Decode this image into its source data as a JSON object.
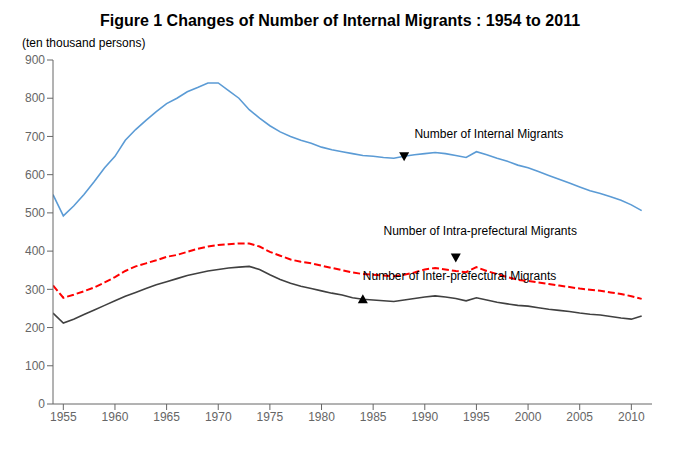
{
  "chart_data": {
    "type": "line",
    "title": "Figure 1   Changes of Number of Internal Migrants : 1954 to 2011",
    "ylabel": "(ten thousand persons)",
    "grid": false,
    "xlim": [
      1954,
      2012
    ],
    "xticks": [
      1955,
      1960,
      1965,
      1970,
      1975,
      1980,
      1985,
      1990,
      1995,
      2000,
      2005,
      2010
    ],
    "ylim": [
      0,
      900
    ],
    "yticks": [
      0,
      100,
      200,
      300,
      400,
      500,
      600,
      700,
      800,
      900
    ],
    "x": [
      1954,
      1955,
      1956,
      1957,
      1958,
      1959,
      1960,
      1961,
      1962,
      1963,
      1964,
      1965,
      1966,
      1967,
      1968,
      1969,
      1970,
      1971,
      1972,
      1973,
      1974,
      1975,
      1976,
      1977,
      1978,
      1979,
      1980,
      1981,
      1982,
      1983,
      1984,
      1985,
      1986,
      1987,
      1988,
      1989,
      1990,
      1991,
      1992,
      1993,
      1994,
      1995,
      1996,
      1997,
      1998,
      1999,
      2000,
      2001,
      2002,
      2003,
      2004,
      2005,
      2006,
      2007,
      2008,
      2009,
      2010,
      2011
    ],
    "series": [
      {
        "color": "#5B9BD5",
        "line_style": "solid",
        "values": [
          548,
          492,
          518,
          548,
          582,
          618,
          648,
          690,
          718,
          742,
          765,
          786,
          800,
          817,
          828,
          840,
          840,
          820,
          800,
          770,
          748,
          728,
          712,
          700,
          690,
          682,
          672,
          665,
          660,
          655,
          650,
          648,
          645,
          643,
          648,
          652,
          655,
          658,
          655,
          650,
          645,
          660,
          652,
          643,
          635,
          625,
          618,
          608,
          598,
          588,
          578,
          568,
          558,
          551,
          542,
          533,
          521,
          506
        ]
      },
      {
        "color": "#FF0000",
        "line_style": "dashed",
        "values": [
          310,
          278,
          286,
          295,
          305,
          318,
          332,
          348,
          360,
          368,
          376,
          385,
          390,
          398,
          406,
          412,
          416,
          418,
          420,
          420,
          412,
          398,
          388,
          378,
          372,
          368,
          362,
          356,
          350,
          344,
          340,
          338,
          336,
          334,
          338,
          344,
          352,
          356,
          352,
          348,
          345,
          358,
          348,
          340,
          332,
          325,
          322,
          318,
          314,
          310,
          306,
          302,
          299,
          296,
          292,
          288,
          282,
          275
        ]
      },
      {
        "color": "#404040",
        "line_style": "solid",
        "values": [
          238,
          212,
          222,
          234,
          246,
          258,
          270,
          282,
          292,
          302,
          312,
          320,
          328,
          336,
          342,
          348,
          352,
          356,
          358,
          360,
          352,
          338,
          326,
          316,
          308,
          302,
          296,
          290,
          285,
          278,
          274,
          272,
          270,
          268,
          272,
          276,
          280,
          283,
          280,
          276,
          270,
          278,
          272,
          266,
          262,
          258,
          256,
          252,
          248,
          245,
          242,
          238,
          235,
          233,
          229,
          225,
          222,
          230
        ]
      }
    ],
    "annotations": [
      {
        "text": "Number of Internal Migrants",
        "x": 1989,
        "y": 688,
        "point_x": 1988,
        "point_y": 648,
        "marker": "triangle_down"
      },
      {
        "text": "Number of Intra-prefectural Migrants",
        "x": 1986,
        "y": 435,
        "point_x": 1993,
        "point_y": 383,
        "marker": "triangle_down"
      },
      {
        "text": "Number of Inter-prefectural Migrants",
        "x": 1984,
        "y": 316,
        "point_x": 1984,
        "point_y": 274,
        "marker": "triangle_up"
      }
    ]
  }
}
